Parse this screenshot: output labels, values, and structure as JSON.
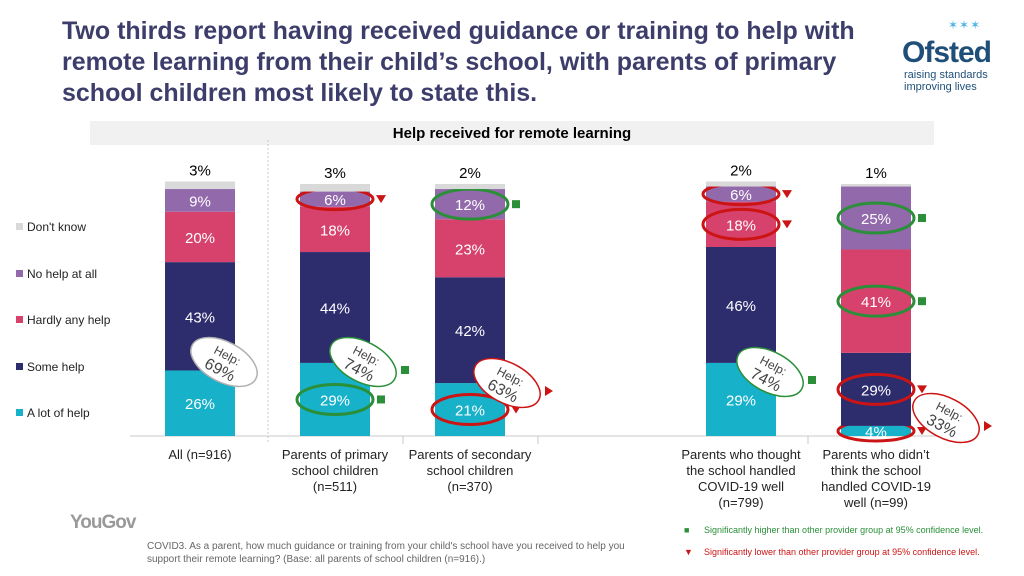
{
  "title": "Two thirds report having received guidance or training to help with remote learning from their child’s school, with parents of primary school children most likely to state this.",
  "logo": {
    "name": "Ofsted",
    "tagline_1": "raising standards",
    "tagline_2": "improving lives"
  },
  "brand": "YouGov",
  "footnote": "COVID3. As a parent, how much guidance or training from your child's school have you received to help you support their remote learning? (Base: all parents of school children (n=916).)",
  "significance": {
    "higher": "Significantly higher than other provider group at 95% confidence level.",
    "lower": "Significantly lower than other provider group at 95% confidence level."
  },
  "colors": {
    "dont_know": "#d9d9d9",
    "no_help": "#9269ab",
    "hardly": "#d6426b",
    "some": "#2d2d6e",
    "lot": "#17b1c9",
    "sig_high": "#2a8f38",
    "sig_low": "#cc1414"
  },
  "chart_data": {
    "type": "bar",
    "stacked": true,
    "title": "Help received for remote learning",
    "ylim": [
      0,
      100
    ],
    "categories": [
      "All (n=916)",
      "Parents of primary school children (n=511)",
      "Parents of secondary school children (n=370)",
      "Parents who thought the school handled COVID-19 well (n=799)",
      "Parents who didn’t think the school handled COVID-19 well (n=99)"
    ],
    "legend_position": "left",
    "series": [
      {
        "name": "A lot of help",
        "key": "lot",
        "values": [
          26,
          29,
          21,
          29,
          4
        ],
        "labels": [
          "26%",
          "29%",
          "21%",
          "29%",
          "4%"
        ],
        "sig": [
          null,
          "high",
          "low",
          null,
          "low"
        ]
      },
      {
        "name": "Some help",
        "key": "some",
        "values": [
          43,
          44,
          42,
          46,
          29
        ],
        "labels": [
          "43%",
          "44%",
          "42%",
          "46%",
          "29%"
        ],
        "sig": [
          null,
          null,
          null,
          null,
          "low"
        ]
      },
      {
        "name": "Hardly any help",
        "key": "hardly",
        "values": [
          20,
          18,
          23,
          18,
          41
        ],
        "labels": [
          "20%",
          "18%",
          "23%",
          "18%",
          "41%"
        ],
        "sig": [
          null,
          null,
          null,
          "low",
          "high"
        ]
      },
      {
        "name": "No help at all",
        "key": "no_help",
        "values": [
          9,
          6,
          12,
          6,
          25
        ],
        "labels": [
          "9%",
          "6%",
          "12%",
          "6%",
          "25%"
        ],
        "sig": [
          null,
          "low",
          "high",
          "low",
          "high"
        ]
      },
      {
        "name": "Don't know",
        "key": "dont_know",
        "values": [
          3,
          3,
          2,
          2,
          1
        ],
        "labels": [
          "3%",
          "3%",
          "2%",
          "2%",
          "1%"
        ],
        "sig": [
          null,
          null,
          null,
          null,
          null
        ]
      }
    ],
    "help_totals": {
      "label": "Help:",
      "values": [
        69,
        74,
        63,
        74,
        33
      ],
      "labels": [
        "69%",
        "74%",
        "63%",
        "74%",
        "33%"
      ],
      "sig": [
        null,
        "high",
        "low",
        "high",
        "low"
      ]
    }
  }
}
